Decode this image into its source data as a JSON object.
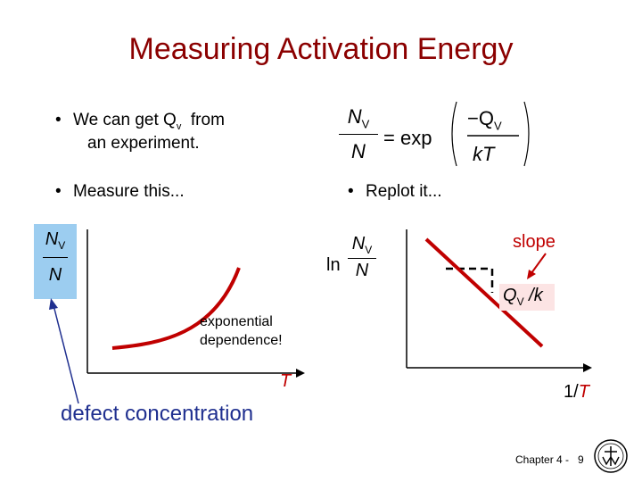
{
  "title": "Measuring Activation Energy",
  "bullets": {
    "b1_line1_pre": "We can get Q",
    "b1_sub": "v",
    "b1_line1_post": "from",
    "b1_line2": "an experiment.",
    "b2": "Measure this...",
    "b3": "Replot it..."
  },
  "equation": {
    "num": "N",
    "num_sub": "V",
    "den": "N",
    "equals_exp": "= exp",
    "minus_q": "−Q",
    "q_sub": "V",
    "kT_k": "k",
    "kT_T": "T"
  },
  "left_plot": {
    "ylabel_num": "N",
    "ylabel_num_sub": "V",
    "ylabel_den": "N",
    "xlabel": "T",
    "annotation_line1": "exponential",
    "annotation_line2": "dependence!",
    "callout": "defect concentration"
  },
  "right_plot": {
    "ylabel_ln": "ln",
    "ylabel_num": "N",
    "ylabel_num_sub": "V",
    "ylabel_den": "N",
    "xlabel_pre": "1/",
    "xlabel_T": "T",
    "slope_label": "slope",
    "slope_value_q": "Q",
    "slope_value_sub": "V",
    "slope_value_k": "/k"
  },
  "footer": {
    "chapter": "Chapter 4 -",
    "page": "9"
  },
  "colors": {
    "title": "#8b0000",
    "curve": "#c00000",
    "callout_box": "#9ccdf0",
    "callout_arrow": "#1f2f8f"
  }
}
